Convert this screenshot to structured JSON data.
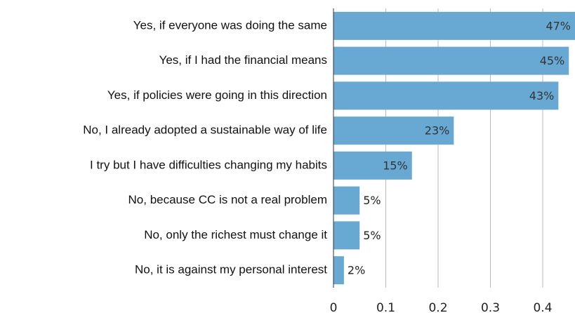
{
  "chart_data": {
    "type": "bar",
    "orientation": "horizontal",
    "categories": [
      "Yes, if everyone was doing the same",
      "Yes, if I had the financial means",
      "Yes, if policies were going in this direction",
      "No, I already adopted a sustainable way of life",
      "I try but I have difficulties changing my habits",
      "No, because CC is not a real problem",
      "No, only the richest must change it",
      "No, it is against my personal interest"
    ],
    "values": [
      0.47,
      0.45,
      0.43,
      0.23,
      0.15,
      0.05,
      0.05,
      0.02
    ],
    "value_labels": [
      "47%",
      "45%",
      "43%",
      "23%",
      "15%",
      "5%",
      "5%",
      "2%"
    ],
    "color": "#68a9d3",
    "xlim": [
      0,
      0.46
    ],
    "xticks": [
      0,
      0.1,
      0.2,
      0.3,
      0.4
    ],
    "grid": true
  }
}
